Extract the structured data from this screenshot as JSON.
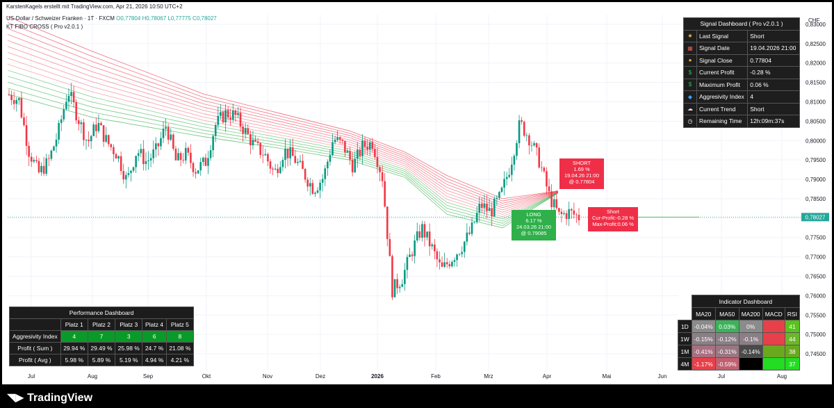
{
  "header": {
    "watermark": "KarstenKagels erstellt mit TradingView.com, Apr 21, 2026 10:50 UTC+2",
    "symbol": "US-Dollar / Schweizer Franken · 1T · FXCM",
    "ohlc": {
      "o": "O0,77804",
      "h": "H0,78067",
      "l": "L0,77775",
      "c": "C0,78027"
    },
    "indicator": "KT FIBO CROSS ( Pro v2.0.1 )",
    "currency": "CHF"
  },
  "chart_data": {
    "type": "candlestick",
    "ylim": [
      0.7425,
      0.8325
    ],
    "yticks": [
      "0,83000",
      "0,82500",
      "0,82000",
      "0,81500",
      "0,81000",
      "0,80500",
      "0,80000",
      "0,79500",
      "0,79000",
      "0,78500",
      "0,78000",
      "0,77500",
      "0,77000",
      "0,76500",
      "0,76000",
      "0,75500",
      "0,75000",
      "0,74500"
    ],
    "xticks": [
      "Jul",
      "Aug",
      "Sep",
      "Okt",
      "Nov",
      "Dez",
      "2026",
      "Feb",
      "Mrz",
      "Apr",
      "Mai",
      "Jun",
      "Jul",
      "Aug"
    ],
    "last_price": "0,78027",
    "path_points": [
      0.8118,
      0.8105,
      0.7975,
      0.7915,
      0.7945,
      0.802,
      0.813,
      0.806,
      0.7995,
      0.8045,
      0.7995,
      0.7965,
      0.7895,
      0.7975,
      0.7945,
      0.7975,
      0.804,
      0.7945,
      0.7965,
      0.7925,
      0.7945,
      0.804,
      0.807,
      0.8065,
      0.8025,
      0.7985,
      0.7965,
      0.7915,
      0.7975,
      0.7955,
      0.7915,
      0.7875,
      0.7905,
      0.8005,
      0.7988,
      0.7935,
      0.7985,
      0.7995,
      0.7905,
      0.7615,
      0.7645,
      0.7715,
      0.7775,
      0.7725,
      0.7665,
      0.7695,
      0.7725,
      0.7765,
      0.7835,
      0.7815,
      0.7855,
      0.7935,
      0.8045,
      0.8005,
      0.7945,
      0.7855,
      0.7805,
      0.7815,
      0.7803
    ],
    "ema_fan": {
      "fast": [
        0.812,
        0.806,
        0.801,
        0.798,
        0.795,
        0.7905,
        0.781,
        0.7775,
        0.7865
      ],
      "slow": [
        0.832,
        0.823,
        0.812,
        0.807,
        0.8025,
        0.797,
        0.791,
        0.785,
        0.787
      ]
    }
  },
  "labels": {
    "short_signal": [
      "SHORT",
      "1.69 %",
      "19.04.26 21:00",
      "@ 0.77804"
    ],
    "long_signal": [
      "LONG",
      "6.17 %",
      "24.03.26 21:00",
      "@ 0.79085"
    ],
    "current": [
      "Short",
      "Cur-Profit:-0.28 %",
      "Max-Profit:0.06 %"
    ]
  },
  "signal_dashboard": {
    "title": "Signal Dashboard ( Pro v2.0.1 )",
    "rows": [
      {
        "icon": "star-icon",
        "glyph": "★",
        "color": "#f5c542",
        "label": "Last Signal",
        "value": "Short"
      },
      {
        "icon": "calendar-icon",
        "glyph": "▦",
        "color": "#e05a5a",
        "label": "Signal Date",
        "value": "19.04.2026 21:00"
      },
      {
        "icon": "moneybag-icon",
        "glyph": "●",
        "color": "#f0b030",
        "label": "Signal Close",
        "value": "0.77804"
      },
      {
        "icon": "dollar-icon",
        "glyph": "$",
        "color": "#26c24a",
        "label": "Current Profit",
        "value": "-0.28 %"
      },
      {
        "icon": "dollar-icon",
        "glyph": "$",
        "color": "#26c24a",
        "label": "Maximum Profit",
        "value": "0.06 %"
      },
      {
        "icon": "diamond-icon",
        "glyph": "◆",
        "color": "#3aa0ff",
        "label": "Aggresivity Index",
        "value": "4"
      },
      {
        "icon": "cloud-icon",
        "glyph": "☁",
        "color": "#dddddd",
        "label": "Current Trend",
        "value": "Short"
      },
      {
        "icon": "clock-icon",
        "glyph": "◷",
        "color": "#ffffff",
        "label": "Remaining Time",
        "value": "12h:09m:37s"
      }
    ]
  },
  "performance_dashboard": {
    "title": "Performance Dashboard",
    "headers": [
      "",
      "Platz 1",
      "Platz 2",
      "Platz 3",
      "Platz 4",
      "Platz 5"
    ],
    "rows": [
      {
        "label": "Aggresivity Index",
        "values": [
          "4",
          "7",
          "3",
          "6",
          "8"
        ]
      },
      {
        "label": "Profit ( Sum )",
        "values": [
          "29.94 %",
          "29.49 %",
          "25.98 %",
          "24.7 %",
          "21.08 %"
        ]
      },
      {
        "label": "Profit ( Avg )",
        "values": [
          "5.98 %",
          "5.89 %",
          "5.19 %",
          "4.94 %",
          "4.21 %"
        ]
      }
    ]
  },
  "indicator_dashboard": {
    "title": "Indicator Dashboard",
    "headers": [
      "",
      "MA20",
      "MA50",
      "MA200",
      "MACD",
      "RSI"
    ],
    "rows": [
      {
        "label": "1D",
        "cells": [
          {
            "v": "-0.04%",
            "c": "#8b8b8b"
          },
          {
            "v": "0.03%",
            "c": "#3cb35a"
          },
          {
            "v": "0%",
            "c": "#8b8b8b"
          },
          {
            "v": "",
            "c": "#e8404a"
          },
          {
            "v": "41",
            "c": "#5ac21e"
          }
        ]
      },
      {
        "label": "1W",
        "cells": [
          {
            "v": "-0.15%",
            "c": "#8b7f86"
          },
          {
            "v": "-0.12%",
            "c": "#8b7f86"
          },
          {
            "v": "-0.1%",
            "c": "#8b7f86"
          },
          {
            "v": "",
            "c": "#e8404a"
          },
          {
            "v": "44",
            "c": "#6ab82a"
          }
        ]
      },
      {
        "label": "1M",
        "cells": [
          {
            "v": "-0.41%",
            "c": "#a87080"
          },
          {
            "v": "-0.31%",
            "c": "#9a7682"
          },
          {
            "v": "-0.14%",
            "c": "#4a4a4a"
          },
          {
            "v": "",
            "c": "#6aa820"
          },
          {
            "v": "38",
            "c": "#6aa820"
          }
        ]
      },
      {
        "label": "4M",
        "cells": [
          {
            "v": "-1.17%",
            "c": "#e8404a"
          },
          {
            "v": "-0.59%",
            "c": "#c26070"
          },
          {
            "v": "",
            "c": "#000000"
          },
          {
            "v": "",
            "c": "#22dd22"
          },
          {
            "v": "37",
            "c": "#22dd22"
          }
        ]
      }
    ]
  },
  "footer": {
    "brand": "TradingView"
  }
}
